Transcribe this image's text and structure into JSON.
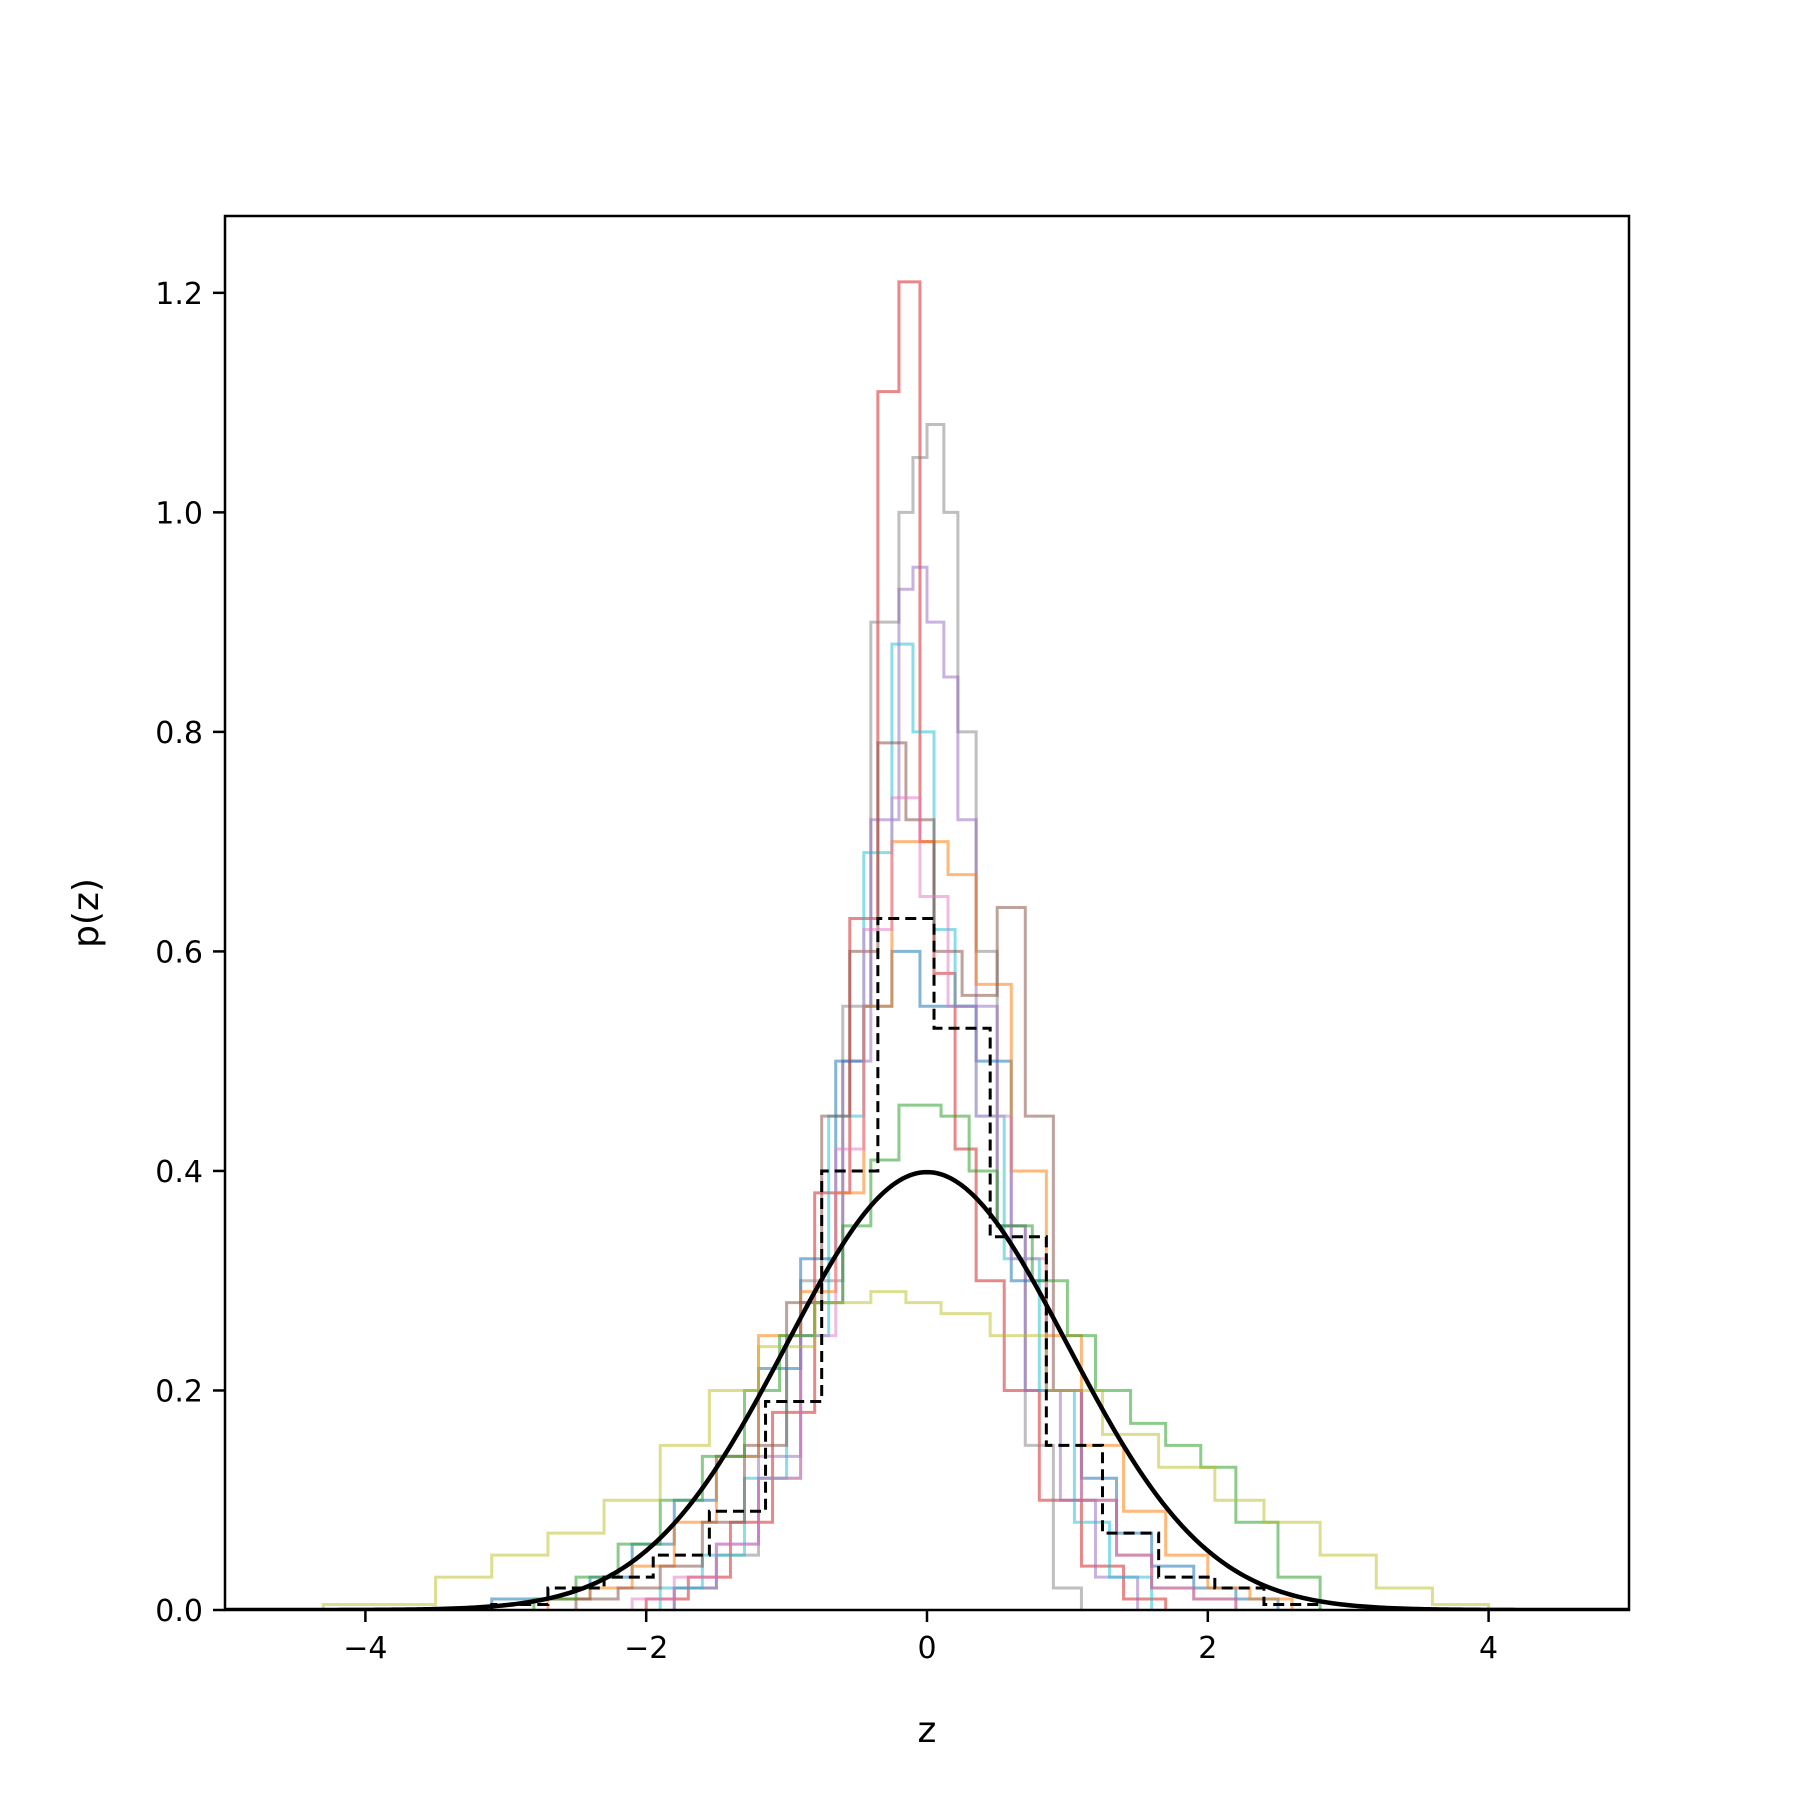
{
  "chart_data": {
    "type": "histogram",
    "xlabel": "z",
    "ylabel": "p(z)",
    "xlim": [
      -5,
      5
    ],
    "ylim": [
      0,
      1.27
    ],
    "xticks": [
      -4,
      -2,
      0,
      2,
      4
    ],
    "xtick_labels": [
      "−4",
      "−2",
      "0",
      "2",
      "4"
    ],
    "yticks": [
      0,
      0.2,
      0.4,
      0.6,
      0.8,
      1.0,
      1.2
    ],
    "ytick_labels": [
      "0.0",
      "0.2",
      "0.4",
      "0.6",
      "0.8",
      "1.0",
      "1.2"
    ],
    "grid": false,
    "legend": "none",
    "series": [
      {
        "color": "#d62728",
        "opacity": 0.55,
        "edges": [
          -2.0,
          -1.7,
          -1.4,
          -1.1,
          -0.8,
          -0.55,
          -0.35,
          -0.2,
          -0.05,
          0.05,
          0.2,
          0.35,
          0.55,
          0.8,
          1.1,
          1.4,
          1.7
        ],
        "values": [
          0.01,
          0.03,
          0.08,
          0.18,
          0.38,
          0.63,
          1.11,
          1.21,
          0.7,
          0.58,
          0.42,
          0.3,
          0.2,
          0.1,
          0.04,
          0.01
        ]
      },
      {
        "color": "#7f7f7f",
        "opacity": 0.5,
        "edges": [
          -1.8,
          -1.5,
          -1.2,
          -0.9,
          -0.6,
          -0.4,
          -0.2,
          -0.1,
          0.0,
          0.12,
          0.22,
          0.35,
          0.5,
          0.7,
          0.9,
          1.1
        ],
        "values": [
          0.02,
          0.05,
          0.12,
          0.3,
          0.55,
          0.9,
          1.0,
          1.05,
          1.08,
          1.0,
          0.8,
          0.6,
          0.35,
          0.15,
          0.02
        ]
      },
      {
        "color": "#9467bd",
        "opacity": 0.5,
        "edges": [
          -1.8,
          -1.5,
          -1.2,
          -0.9,
          -0.6,
          -0.4,
          -0.2,
          -0.1,
          0.0,
          0.12,
          0.22,
          0.35,
          0.5,
          0.7,
          0.95,
          1.2,
          1.5
        ],
        "values": [
          0.02,
          0.06,
          0.14,
          0.28,
          0.5,
          0.72,
          0.93,
          0.95,
          0.9,
          0.85,
          0.72,
          0.55,
          0.35,
          0.2,
          0.1,
          0.03
        ]
      },
      {
        "color": "#17becf",
        "opacity": 0.5,
        "edges": [
          -1.9,
          -1.6,
          -1.3,
          -1.0,
          -0.7,
          -0.45,
          -0.25,
          -0.1,
          0.05,
          0.2,
          0.35,
          0.55,
          0.8,
          1.05,
          1.3,
          1.6
        ],
        "values": [
          0.02,
          0.05,
          0.12,
          0.25,
          0.45,
          0.69,
          0.88,
          0.8,
          0.62,
          0.55,
          0.45,
          0.32,
          0.2,
          0.08,
          0.03
        ]
      },
      {
        "color": "#1f77b4",
        "opacity": 0.55,
        "edges": [
          -3.1,
          -2.4,
          -2.1,
          -1.8,
          -1.5,
          -1.2,
          -0.9,
          -0.65,
          -0.45,
          -0.25,
          -0.05,
          0.15,
          0.35,
          0.6,
          0.85,
          1.1,
          1.35,
          1.6,
          1.9,
          2.2,
          2.5
        ],
        "values": [
          0.01,
          0.03,
          0.06,
          0.1,
          0.14,
          0.22,
          0.32,
          0.5,
          0.55,
          0.6,
          0.55,
          0.55,
          0.5,
          0.3,
          0.2,
          0.12,
          0.07,
          0.04,
          0.02,
          0.01
        ]
      },
      {
        "color": "#ff7f0e",
        "opacity": 0.55,
        "edges": [
          -2.7,
          -2.4,
          -2.1,
          -1.8,
          -1.5,
          -1.2,
          -0.9,
          -0.65,
          -0.45,
          -0.25,
          -0.05,
          0.15,
          0.35,
          0.6,
          0.85,
          1.1,
          1.4,
          1.7,
          2.0,
          2.3,
          2.6
        ],
        "values": [
          0.01,
          0.02,
          0.04,
          0.08,
          0.14,
          0.25,
          0.29,
          0.38,
          0.55,
          0.7,
          0.7,
          0.67,
          0.57,
          0.4,
          0.25,
          0.15,
          0.09,
          0.05,
          0.02,
          0.01
        ]
      },
      {
        "color": "#8c564b",
        "opacity": 0.55,
        "edges": [
          -2.5,
          -2.2,
          -1.9,
          -1.6,
          -1.3,
          -1.0,
          -0.75,
          -0.55,
          -0.35,
          -0.15,
          0.05,
          0.25,
          0.5,
          0.7,
          0.9,
          1.1,
          1.35,
          1.6,
          1.9,
          2.2
        ],
        "values": [
          0.01,
          0.02,
          0.04,
          0.08,
          0.15,
          0.28,
          0.45,
          0.6,
          0.79,
          0.72,
          0.6,
          0.56,
          0.64,
          0.45,
          0.2,
          0.1,
          0.05,
          0.02,
          0.01
        ]
      },
      {
        "color": "#e377c2",
        "opacity": 0.5,
        "edges": [
          -2.1,
          -1.8,
          -1.5,
          -1.2,
          -0.9,
          -0.65,
          -0.45,
          -0.25,
          -0.05,
          0.15,
          0.35,
          0.6,
          0.85,
          1.1,
          1.35,
          1.6,
          1.9,
          2.2
        ],
        "values": [
          0.01,
          0.03,
          0.06,
          0.12,
          0.25,
          0.42,
          0.62,
          0.74,
          0.65,
          0.55,
          0.45,
          0.32,
          0.2,
          0.1,
          0.05,
          0.02,
          0.01
        ]
      },
      {
        "color": "#2ca02c",
        "opacity": 0.55,
        "edges": [
          -2.8,
          -2.5,
          -2.2,
          -1.9,
          -1.6,
          -1.3,
          -1.05,
          -0.8,
          -0.6,
          -0.4,
          -0.2,
          0.1,
          0.3,
          0.5,
          0.75,
          1.0,
          1.2,
          1.45,
          1.7,
          1.95,
          2.2,
          2.5,
          2.8
        ],
        "values": [
          0.01,
          0.03,
          0.06,
          0.1,
          0.14,
          0.2,
          0.25,
          0.28,
          0.35,
          0.41,
          0.46,
          0.45,
          0.4,
          0.35,
          0.3,
          0.25,
          0.2,
          0.17,
          0.15,
          0.13,
          0.08,
          0.03
        ]
      },
      {
        "color": "#bcbd22",
        "opacity": 0.5,
        "edges": [
          -4.3,
          -3.5,
          -3.1,
          -2.7,
          -2.3,
          -1.9,
          -1.55,
          -1.2,
          -0.8,
          -0.4,
          -0.15,
          0.1,
          0.45,
          0.85,
          1.25,
          1.65,
          2.05,
          2.4,
          2.8,
          3.2,
          3.6,
          4.0
        ],
        "values": [
          0.005,
          0.03,
          0.05,
          0.07,
          0.1,
          0.15,
          0.2,
          0.24,
          0.28,
          0.29,
          0.28,
          0.27,
          0.25,
          0.2,
          0.16,
          0.13,
          0.1,
          0.08,
          0.05,
          0.02,
          0.005
        ]
      },
      {
        "color": "#000000",
        "opacity": 1,
        "dashed": true,
        "edges": [
          -3.1,
          -2.7,
          -2.3,
          -1.95,
          -1.55,
          -1.15,
          -0.75,
          -0.35,
          0.05,
          0.45,
          0.85,
          1.25,
          1.65,
          2.05,
          2.4,
          2.8
        ],
        "values": [
          0.005,
          0.02,
          0.03,
          0.05,
          0.09,
          0.19,
          0.4,
          0.63,
          0.53,
          0.34,
          0.15,
          0.07,
          0.03,
          0.02,
          0.005
        ]
      }
    ],
    "curve": {
      "label": "standard normal pdf",
      "mean": 0,
      "std": 1
    }
  }
}
